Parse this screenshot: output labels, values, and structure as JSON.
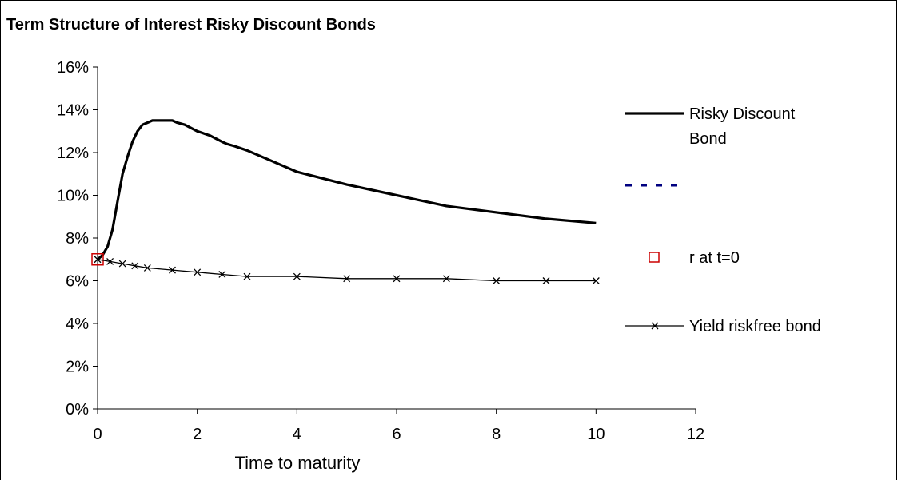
{
  "chart_data": {
    "type": "line",
    "title": "Term Structure of Interest Risky Discount Bonds",
    "xlabel": "Time to maturity",
    "ylabel": "",
    "xlim": [
      0,
      12
    ],
    "ylim": [
      0,
      0.16
    ],
    "x_ticks": [
      "0",
      "2",
      "4",
      "6",
      "8",
      "10",
      "12"
    ],
    "y_ticks": [
      "0%",
      "2%",
      "4%",
      "6%",
      "8%",
      "10%",
      "12%",
      "14%",
      "16%"
    ],
    "grid": false,
    "legend_position": "right",
    "series": [
      {
        "name": "Risky Discount Bond",
        "style": "thick-solid",
        "color": "#000000",
        "points": [
          [
            0,
            0.07
          ],
          [
            0.1,
            0.072
          ],
          [
            0.2,
            0.076
          ],
          [
            0.3,
            0.084
          ],
          [
            0.4,
            0.097
          ],
          [
            0.5,
            0.11
          ],
          [
            0.6,
            0.118
          ],
          [
            0.7,
            0.125
          ],
          [
            0.8,
            0.13
          ],
          [
            0.9,
            0.133
          ],
          [
            1.0,
            0.134
          ],
          [
            1.1,
            0.135
          ],
          [
            1.25,
            0.135
          ],
          [
            1.5,
            0.135
          ],
          [
            1.6,
            0.134
          ],
          [
            1.75,
            0.133
          ],
          [
            2.0,
            0.13
          ],
          [
            2.25,
            0.128
          ],
          [
            2.5,
            0.125
          ],
          [
            2.6,
            0.124
          ],
          [
            2.75,
            0.123
          ],
          [
            3.0,
            0.121
          ],
          [
            3.5,
            0.116
          ],
          [
            4.0,
            0.111
          ],
          [
            5.0,
            0.105
          ],
          [
            6.0,
            0.1
          ],
          [
            7.0,
            0.095
          ],
          [
            8.0,
            0.092
          ],
          [
            9.0,
            0.089
          ],
          [
            10.0,
            0.087
          ]
        ]
      },
      {
        "name": "",
        "style": "dashed",
        "color": "#000080",
        "points": []
      },
      {
        "name": "r at t=0",
        "style": "marker-square",
        "color": "#cc0000",
        "points": [
          [
            0,
            0.07
          ]
        ]
      },
      {
        "name": "Yield riskfree bond",
        "style": "line-x-marker",
        "color": "#000000",
        "points": [
          [
            0,
            0.07
          ],
          [
            0.25,
            0.069
          ],
          [
            0.5,
            0.068
          ],
          [
            0.75,
            0.067
          ],
          [
            1.0,
            0.066
          ],
          [
            1.5,
            0.065
          ],
          [
            2.0,
            0.064
          ],
          [
            2.5,
            0.063
          ],
          [
            3.0,
            0.062
          ],
          [
            4.0,
            0.062
          ],
          [
            5.0,
            0.061
          ],
          [
            6.0,
            0.061
          ],
          [
            7.0,
            0.061
          ],
          [
            8.0,
            0.06
          ],
          [
            9.0,
            0.06
          ],
          [
            10.0,
            0.06
          ]
        ]
      }
    ]
  }
}
